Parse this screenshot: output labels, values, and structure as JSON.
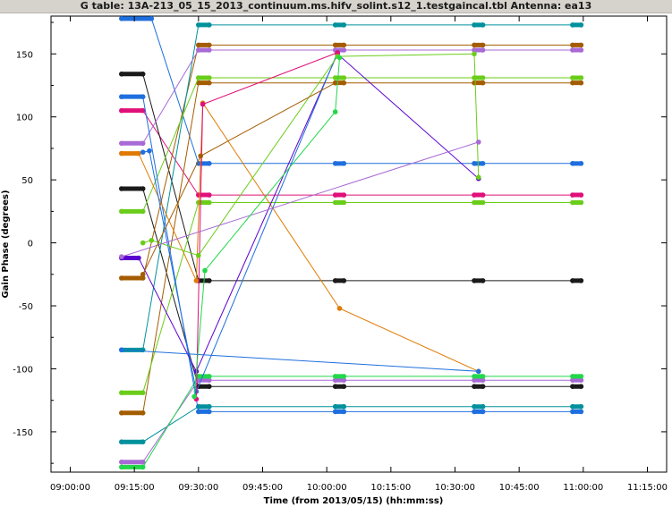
{
  "title": "G table: 13A-213_05_15_2013_continuum.ms.hifv_solint.s12_1.testgaincal.tbl   Antenna: ea13",
  "chart_data": {
    "type": "line",
    "xlabel": "Time (from 2013/05/15) (hh:mm:ss)",
    "ylabel": "Gain Phase (degrees)",
    "x_ticks": [
      "09:00:00",
      "09:15:00",
      "09:30:00",
      "09:45:00",
      "10:00:00",
      "10:15:00",
      "10:30:00",
      "10:45:00",
      "11:00:00",
      "11:15:00"
    ],
    "y_ticks": [
      150,
      100,
      50,
      0,
      -50,
      -100,
      -150
    ],
    "xlim": [
      "08:55:30",
      "11:19:30"
    ],
    "ylim": [
      -182,
      180
    ],
    "grid": false,
    "series": [
      {
        "color": "#1f6fde",
        "points": [
          [
            "09:12:00",
            178
          ],
          [
            "09:19:00",
            178
          ],
          [
            "09:30:00",
            63
          ],
          [
            "09:32:30",
            63
          ],
          [
            "10:02:00",
            63
          ],
          [
            "10:04:00",
            63
          ],
          [
            "10:34:30",
            63
          ],
          [
            "10:36:30",
            63
          ],
          [
            "10:57:30",
            63
          ],
          [
            "10:59:30",
            63
          ]
        ]
      },
      {
        "color": "#e0107a",
        "points": [
          [
            "09:12:00",
            105
          ],
          [
            "09:17:00",
            105
          ],
          [
            "09:30:00",
            38
          ],
          [
            "09:32:30",
            38
          ],
          [
            "10:02:00",
            38
          ],
          [
            "10:04:00",
            38
          ],
          [
            "10:34:30",
            38
          ],
          [
            "10:36:30",
            38
          ],
          [
            "10:57:30",
            38
          ],
          [
            "10:59:30",
            38
          ]
        ]
      },
      {
        "color": "#1a1a1a",
        "points": [
          [
            "09:12:00",
            134
          ],
          [
            "09:17:00",
            134
          ],
          [
            "09:30:00",
            -30
          ],
          [
            "09:32:30",
            -30
          ],
          [
            "10:02:00",
            -30
          ],
          [
            "10:04:00",
            -30
          ],
          [
            "10:34:30",
            -30
          ],
          [
            "10:36:30",
            -30
          ],
          [
            "10:57:30",
            -30
          ],
          [
            "10:59:30",
            -30
          ]
        ]
      },
      {
        "color": "#1a1a1a",
        "points": [
          [
            "09:12:00",
            43
          ],
          [
            "09:17:00",
            43
          ],
          [
            "09:30:00",
            -114
          ],
          [
            "09:32:30",
            -114
          ],
          [
            "10:02:00",
            -114
          ],
          [
            "10:04:00",
            -114
          ],
          [
            "10:34:30",
            -114
          ],
          [
            "10:36:30",
            -114
          ],
          [
            "10:57:30",
            -114
          ],
          [
            "10:59:30",
            -114
          ]
        ]
      },
      {
        "color": "#a45c00",
        "points": [
          [
            "09:12:00",
            -28
          ],
          [
            "09:17:00",
            -28
          ],
          [
            "09:30:00",
            157
          ],
          [
            "09:32:30",
            157
          ],
          [
            "10:02:00",
            157
          ],
          [
            "10:04:00",
            157
          ],
          [
            "10:34:30",
            157
          ],
          [
            "10:36:30",
            157
          ],
          [
            "10:57:30",
            157
          ],
          [
            "10:59:30",
            157
          ]
        ]
      },
      {
        "color": "#a45c00",
        "points": [
          [
            "09:12:00",
            -135
          ],
          [
            "09:17:00",
            -135
          ],
          [
            "09:30:00",
            127
          ],
          [
            "09:32:30",
            127
          ],
          [
            "10:02:00",
            127
          ],
          [
            "10:04:00",
            127
          ],
          [
            "10:34:30",
            127
          ],
          [
            "10:36:30",
            127
          ],
          [
            "10:57:30",
            127
          ],
          [
            "10:59:30",
            127
          ]
        ]
      },
      {
        "color": "#00919c",
        "points": [
          [
            "09:12:00",
            -85
          ],
          [
            "09:17:00",
            -85
          ],
          [
            "09:30:00",
            173
          ],
          [
            "09:32:30",
            173
          ],
          [
            "10:02:00",
            173
          ],
          [
            "10:04:00",
            173
          ],
          [
            "10:34:30",
            173
          ],
          [
            "10:36:30",
            173
          ],
          [
            "10:57:30",
            173
          ],
          [
            "10:59:30",
            173
          ]
        ]
      },
      {
        "color": "#00919c",
        "points": [
          [
            "09:12:00",
            -158
          ],
          [
            "09:17:00",
            -158
          ],
          [
            "09:30:00",
            -130
          ],
          [
            "09:32:30",
            -130
          ],
          [
            "10:02:00",
            -130
          ],
          [
            "10:04:00",
            -130
          ],
          [
            "10:34:30",
            -130
          ],
          [
            "10:36:30",
            -130
          ],
          [
            "10:57:30",
            -130
          ],
          [
            "10:59:30",
            -130
          ]
        ]
      },
      {
        "color": "#a86ad6",
        "points": [
          [
            "09:12:00",
            79
          ],
          [
            "09:17:00",
            79
          ],
          [
            "09:30:00",
            153
          ],
          [
            "09:32:30",
            153
          ],
          [
            "10:02:00",
            153
          ],
          [
            "10:04:00",
            153
          ],
          [
            "10:34:30",
            153
          ],
          [
            "10:36:30",
            153
          ],
          [
            "10:57:30",
            153
          ],
          [
            "10:59:30",
            153
          ]
        ]
      },
      {
        "color": "#a86ad6",
        "points": [
          [
            "09:12:00",
            -174
          ],
          [
            "09:17:00",
            -174
          ],
          [
            "09:30:00",
            -109
          ],
          [
            "09:32:30",
            -109
          ],
          [
            "10:02:00",
            -109
          ],
          [
            "10:04:00",
            -109
          ],
          [
            "10:34:30",
            -109
          ],
          [
            "10:36:30",
            -109
          ],
          [
            "10:57:30",
            -109
          ],
          [
            "10:59:30",
            -109
          ]
        ]
      },
      {
        "color": "#6acd1a",
        "points": [
          [
            "09:12:00",
            25
          ],
          [
            "09:17:00",
            25
          ],
          [
            "09:30:00",
            131
          ],
          [
            "09:32:30",
            131
          ],
          [
            "10:02:00",
            131
          ],
          [
            "10:04:00",
            131
          ],
          [
            "10:34:30",
            131
          ],
          [
            "10:36:30",
            131
          ],
          [
            "10:57:30",
            131
          ],
          [
            "10:59:30",
            131
          ]
        ]
      },
      {
        "color": "#6acd1a",
        "points": [
          [
            "09:12:00",
            -119
          ],
          [
            "09:17:00",
            -119
          ],
          [
            "09:30:00",
            32
          ],
          [
            "09:32:30",
            32
          ],
          [
            "10:02:00",
            32
          ],
          [
            "10:04:00",
            32
          ],
          [
            "10:34:30",
            32
          ],
          [
            "10:36:30",
            32
          ],
          [
            "10:57:30",
            32
          ],
          [
            "10:59:30",
            32
          ]
        ]
      },
      {
        "color": "#22d84a",
        "points": [
          [
            "09:12:00",
            -178
          ],
          [
            "09:17:00",
            -178
          ],
          [
            "09:30:00",
            -106
          ],
          [
            "09:32:30",
            -106
          ],
          [
            "10:02:00",
            -106
          ],
          [
            "10:04:00",
            -106
          ],
          [
            "10:34:30",
            -106
          ],
          [
            "10:36:30",
            -106
          ],
          [
            "10:57:30",
            -106
          ],
          [
            "10:59:30",
            -106
          ]
        ]
      },
      {
        "color": "#1f6fde",
        "points": [
          [
            "09:12:00",
            116
          ],
          [
            "09:17:00",
            116
          ],
          [
            "09:30:00",
            -134
          ],
          [
            "09:32:30",
            -134
          ],
          [
            "10:02:00",
            -134
          ],
          [
            "10:04:00",
            -134
          ],
          [
            "10:34:30",
            -134
          ],
          [
            "10:36:30",
            -134
          ],
          [
            "10:57:30",
            -134
          ],
          [
            "10:59:30",
            -134
          ]
        ]
      },
      {
        "color": "#e07a00",
        "points": [
          [
            "09:12:00",
            71
          ],
          [
            "09:16:00",
            71
          ],
          [
            "09:29:30",
            -30
          ],
          [
            "09:31:00",
            111
          ],
          [
            "10:03:00",
            -52
          ],
          [
            "10:35:30",
            -102
          ]
        ]
      },
      {
        "color": "#5a00d0",
        "points": [
          [
            "09:12:00",
            -12
          ],
          [
            "09:16:00",
            -12
          ],
          [
            "09:29:30",
            -102
          ],
          [
            "10:02:30",
            150
          ],
          [
            "10:35:30",
            51
          ]
        ]
      },
      {
        "color": "#1f6fde",
        "points": [
          [
            "09:17:00",
            72
          ],
          [
            "09:18:30",
            73
          ],
          [
            "09:29:30",
            -118
          ],
          [
            "10:02:30",
            151
          ]
        ]
      },
      {
        "color": "#e0107a",
        "points": [
          [
            "09:29:30",
            -124
          ],
          [
            "09:31:00",
            110
          ],
          [
            "10:02:30",
            151
          ]
        ]
      },
      {
        "color": "#6acd1a",
        "points": [
          [
            "09:17:00",
            0
          ],
          [
            "09:19:00",
            2
          ],
          [
            "09:30:00",
            -10
          ],
          [
            "10:02:30",
            148
          ],
          [
            "10:34:30",
            150
          ],
          [
            "10:35:30",
            52
          ]
        ]
      },
      {
        "color": "#a86ad6",
        "points": [
          [
            "09:12:00",
            -11
          ],
          [
            "10:35:30",
            80
          ]
        ]
      },
      {
        "color": "#1f6fde",
        "points": [
          [
            "09:12:00",
            -85
          ],
          [
            "10:35:30",
            -102
          ]
        ]
      },
      {
        "color": "#a45c00",
        "points": [
          [
            "09:17:00",
            -25
          ],
          [
            "09:30:30",
            69
          ],
          [
            "10:02:00",
            127
          ]
        ]
      },
      {
        "color": "#22d84a",
        "points": [
          [
            "09:29:00",
            -122
          ],
          [
            "09:31:30",
            -22
          ],
          [
            "10:02:00",
            104
          ],
          [
            "10:03:00",
            147
          ]
        ]
      }
    ]
  }
}
